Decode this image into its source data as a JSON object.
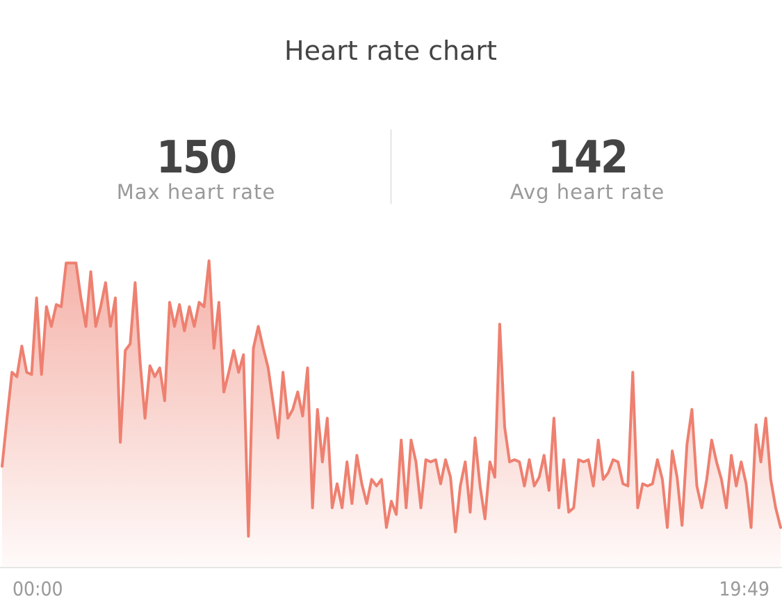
{
  "chart_data": {
    "type": "area",
    "title": "Heart rate chart",
    "stats": [
      {
        "value": 150,
        "label": "Max heart rate"
      },
      {
        "value": 142,
        "label": "Avg heart rate"
      }
    ],
    "x_labels": [
      "00:00",
      "19:49"
    ],
    "color": "#ee8070",
    "ylim": [
      136,
      150
    ],
    "values": [
      140.6,
      142.8,
      144.9,
      144.7,
      146.1,
      144.9,
      144.8,
      148.3,
      144.8,
      147.9,
      147.0,
      148.0,
      147.9,
      149.9,
      149.9,
      149.9,
      148.3,
      147.0,
      149.5,
      147.0,
      147.9,
      149.0,
      147.0,
      148.3,
      141.7,
      145.9,
      146.2,
      149.0,
      145.4,
      142.8,
      145.2,
      144.7,
      145.1,
      143.6,
      148.1,
      147.0,
      148.0,
      146.8,
      147.9,
      147.0,
      148.1,
      147.9,
      150.0,
      146.0,
      148.1,
      144.0,
      144.9,
      145.9,
      144.9,
      145.7,
      137.4,
      146.0,
      147.0,
      146.0,
      145.1,
      143.5,
      141.9,
      144.9,
      142.8,
      143.2,
      144.0,
      142.9,
      145.1,
      138.7,
      143.2,
      140.8,
      142.8,
      138.7,
      139.8,
      138.7,
      140.8,
      138.9,
      141.1,
      139.8,
      138.9,
      140.0,
      139.7,
      140.0,
      137.8,
      139.0,
      138.4,
      141.8,
      138.7,
      141.8,
      140.8,
      138.7,
      140.9,
      140.8,
      140.9,
      139.8,
      140.9,
      140.1,
      137.6,
      139.7,
      140.8,
      138.5,
      141.9,
      139.7,
      138.2,
      140.8,
      140.1,
      147.1,
      142.4,
      140.8,
      140.9,
      140.8,
      139.7,
      140.9,
      139.7,
      140.1,
      141.1,
      139.5,
      142.8,
      138.7,
      140.9,
      138.5,
      138.7,
      140.9,
      140.8,
      140.9,
      139.7,
      141.8,
      140.0,
      140.3,
      140.9,
      140.8,
      139.8,
      139.7,
      144.9,
      138.7,
      139.8,
      139.7,
      139.8,
      140.9,
      140.0,
      137.8,
      141.3,
      140.1,
      137.9,
      141.6,
      143.2,
      139.7,
      138.7,
      140.0,
      141.8,
      140.8,
      140.0,
      138.7,
      141.1,
      139.7,
      140.8,
      139.8,
      137.8,
      142.5,
      140.8,
      142.8,
      140.0,
      138.7,
      137.8
    ]
  }
}
